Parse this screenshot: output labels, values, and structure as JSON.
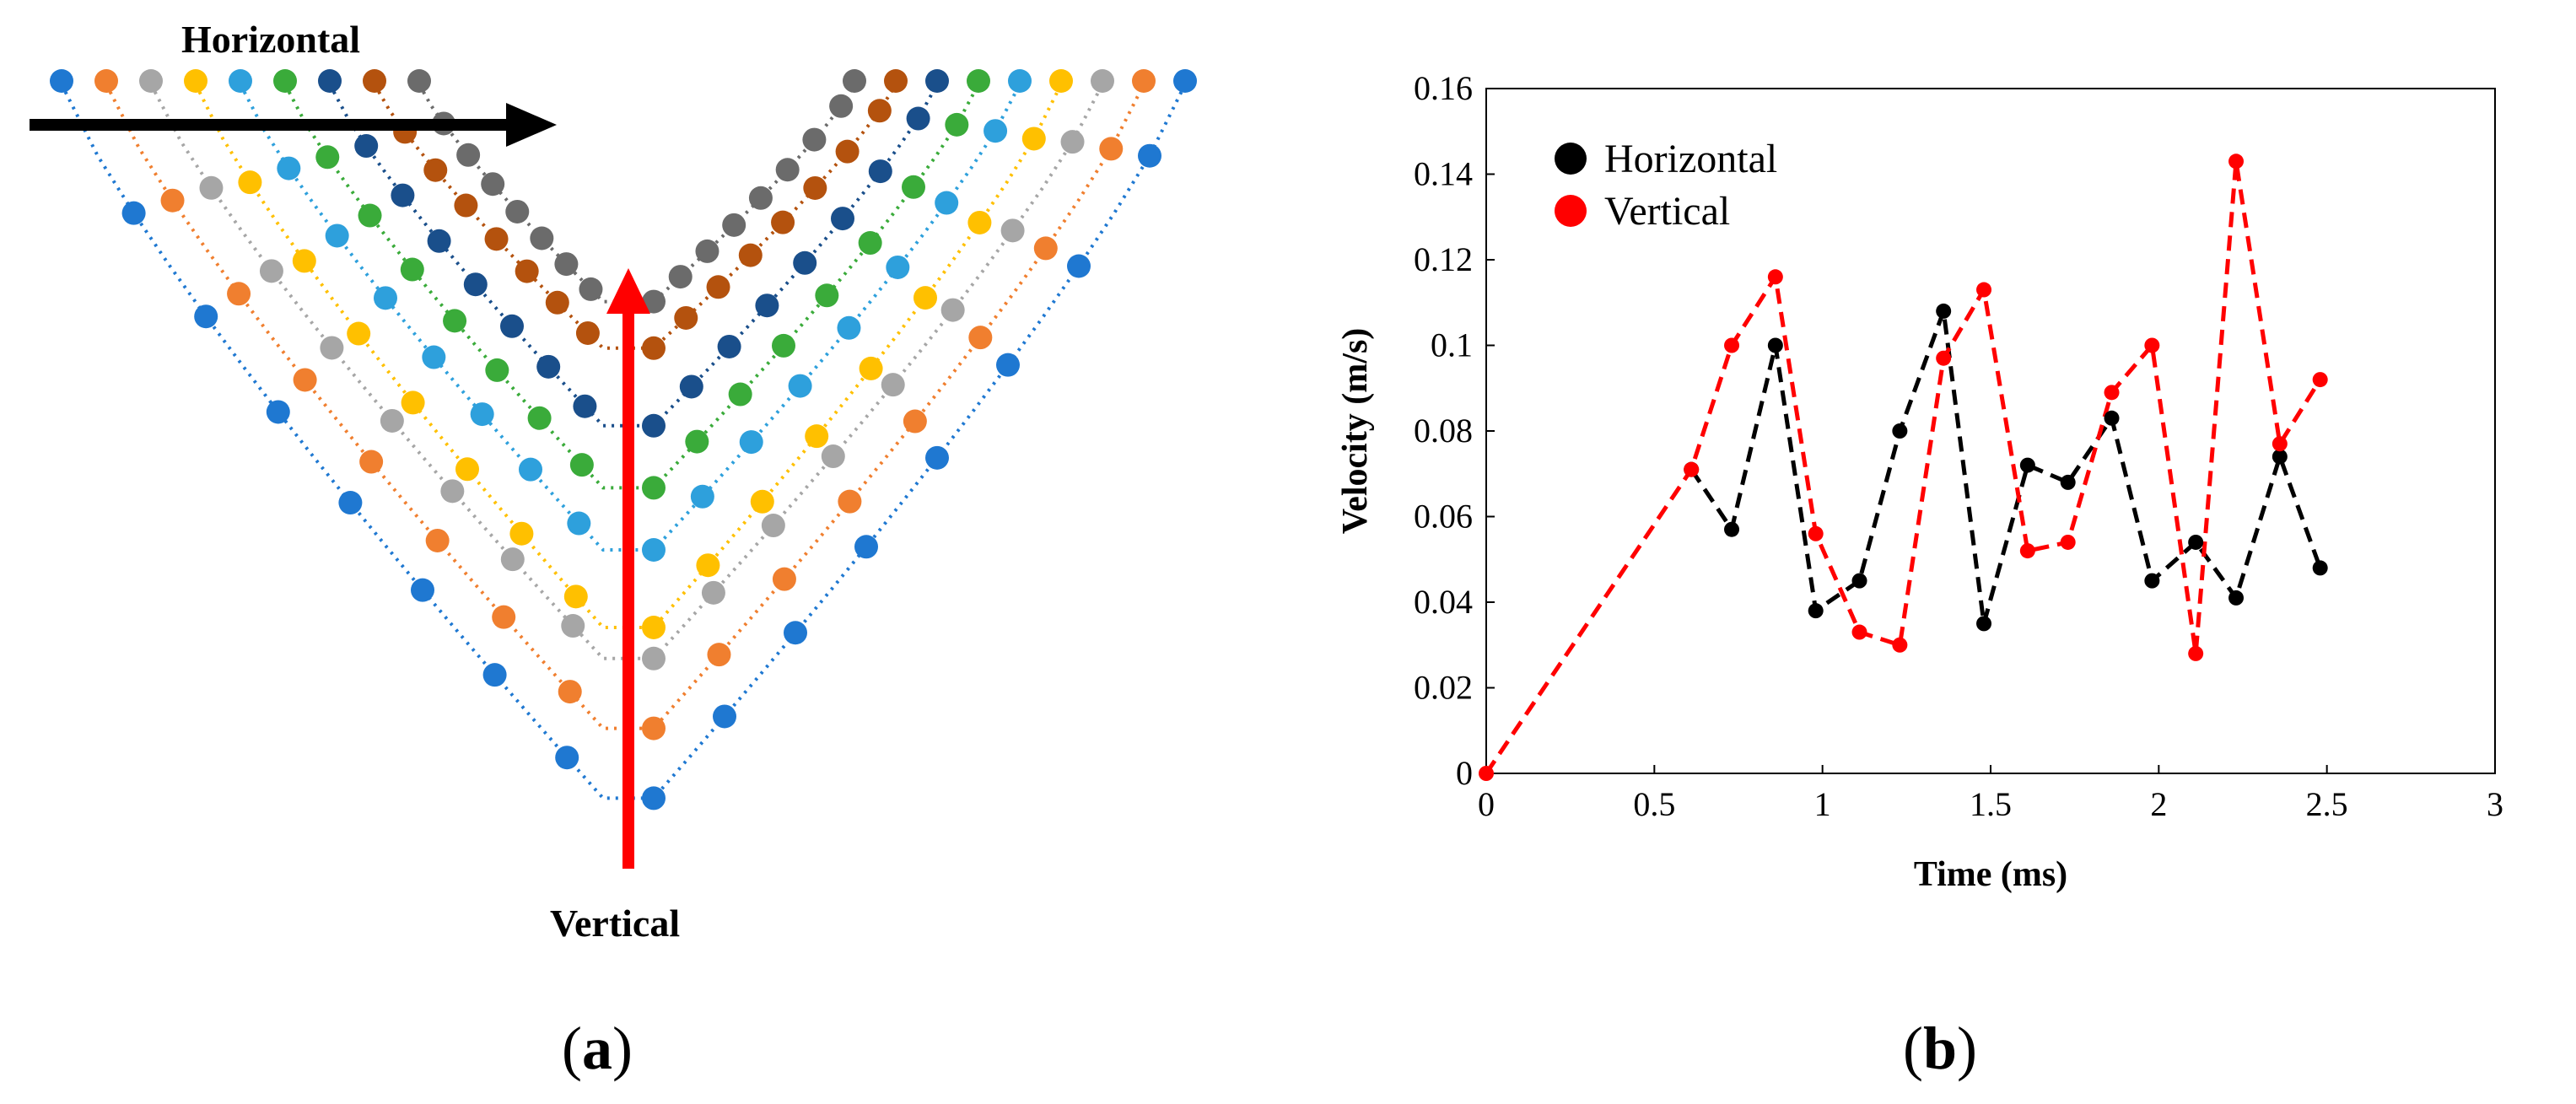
{
  "panel_a": {
    "label_open": "(",
    "label_letter": "a",
    "label_close": ")",
    "horizontal_label": "Horizontal",
    "vertical_label": "Vertical",
    "arrow_colors": {
      "horizontal": "#000000",
      "vertical": "#ff0000"
    },
    "profiles": [
      {
        "color": "#1f78d1",
        "depth": 0.92
      },
      {
        "color": "#f07f2f",
        "depth": 0.83
      },
      {
        "color": "#a6a6a6",
        "depth": 0.74
      },
      {
        "color": "#ffc000",
        "depth": 0.7
      },
      {
        "color": "#2ea0dc",
        "depth": 0.6
      },
      {
        "color": "#3aab3a",
        "depth": 0.52
      },
      {
        "color": "#1a4f8b",
        "depth": 0.44
      },
      {
        "color": "#b4520e",
        "depth": 0.34
      },
      {
        "color": "#6b6b6b",
        "depth": 0.28
      }
    ]
  },
  "panel_b": {
    "label_open": "(",
    "label_letter": "b",
    "label_close": ")"
  },
  "chart_data": {
    "type": "line",
    "title": "",
    "xlabel": "Time (ms)",
    "ylabel": "Velocity (m/s)",
    "xlim": [
      0,
      3
    ],
    "ylim": [
      0,
      0.16
    ],
    "xticks": [
      0,
      0.5,
      1,
      1.5,
      2,
      2.5,
      3
    ],
    "xtick_labels": [
      "0",
      "0.5",
      "1",
      "1.5",
      "2",
      "2.5",
      "3"
    ],
    "yticks": [
      0,
      0.02,
      0.04,
      0.06,
      0.08,
      0.1,
      0.12,
      0.14,
      0.16
    ],
    "ytick_labels": [
      "0",
      "0.02",
      "0.04",
      "0.06",
      "0.08",
      "0.1",
      "0.12",
      "0.14",
      "0.16"
    ],
    "grid": false,
    "legend_position": "top-left",
    "series": [
      {
        "name": "Horizontal",
        "color": "#000000",
        "line_style": "dashed",
        "x": [
          0.61,
          0.73,
          0.86,
          0.98,
          1.11,
          1.23,
          1.36,
          1.48,
          1.61,
          1.73,
          1.86,
          1.98,
          2.11,
          2.23,
          2.36,
          2.48
        ],
        "y": [
          0.071,
          0.057,
          0.1,
          0.038,
          0.045,
          0.08,
          0.108,
          0.035,
          0.072,
          0.068,
          0.083,
          0.045,
          0.054,
          0.041,
          0.074,
          0.048
        ]
      },
      {
        "name": "Vertical",
        "color": "#ff0000",
        "line_style": "dashed",
        "x": [
          0,
          0.61,
          0.73,
          0.86,
          0.98,
          1.11,
          1.23,
          1.36,
          1.48,
          1.61,
          1.73,
          1.86,
          1.98,
          2.11,
          2.23,
          2.36,
          2.48
        ],
        "y": [
          0,
          0.071,
          0.1,
          0.116,
          0.056,
          0.033,
          0.03,
          0.097,
          0.113,
          0.052,
          0.054,
          0.089,
          0.1,
          0.028,
          0.143,
          0.077,
          0.092
        ]
      }
    ]
  }
}
